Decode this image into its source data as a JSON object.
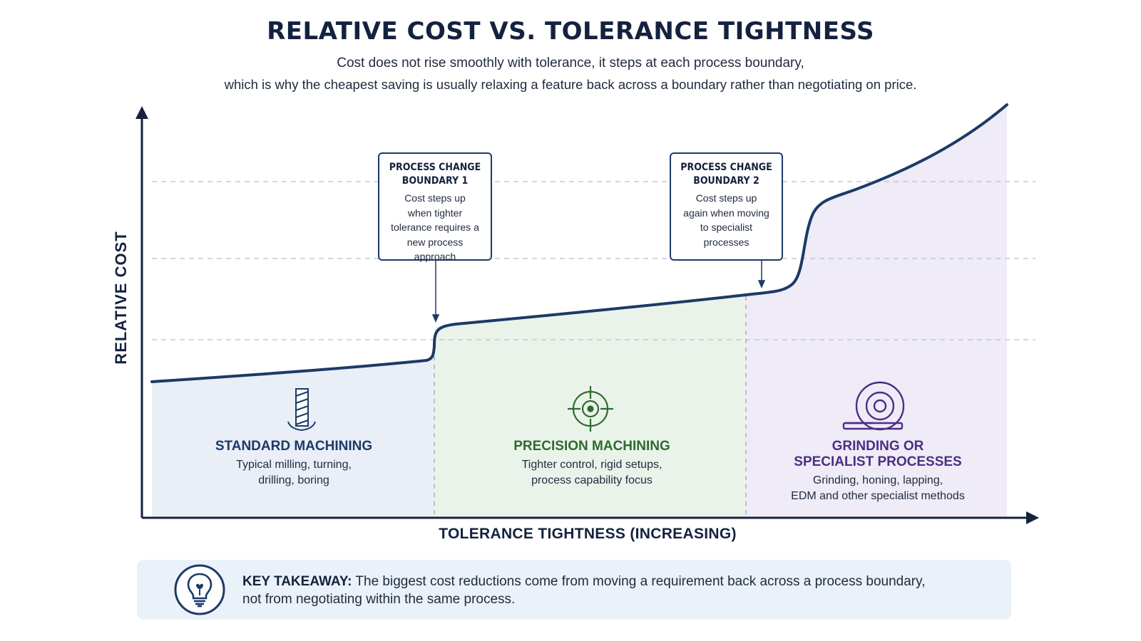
{
  "header": {
    "title": "RELATIVE COST VS. TOLERANCE TIGHTNESS",
    "subtitle_line1": "Cost does not rise smoothly with tolerance, it steps at each process boundary,",
    "subtitle_line2": "which is why the cheapest saving is usually relaxing a feature back across a boundary rather than negotiating on price."
  },
  "axes": {
    "y_label": "RELATIVE COST",
    "x_label": "TOLERANCE TIGHTNESS (INCREASING)"
  },
  "callouts": [
    {
      "title_line1": "PROCESS CHANGE",
      "title_line2": "BOUNDARY 1",
      "body_line1": "Cost steps up",
      "body_line2": "when tighter",
      "body_line3": "tolerance requires a",
      "body_line4": "new process approach"
    },
    {
      "title_line1": "PROCESS CHANGE",
      "title_line2": "BOUNDARY 2",
      "body_line1": "Cost steps up",
      "body_line2": "again when moving",
      "body_line3": "to specialist",
      "body_line4": "processes"
    }
  ],
  "zones": [
    {
      "title_line1": "STANDARD MACHINING",
      "desc_line1": "Typical milling, turning,",
      "desc_line2": "drilling, boring",
      "icon": "drill-bit-icon",
      "color": "#1c3a66",
      "fill": "#e9eef7"
    },
    {
      "title_line1": "PRECISION MACHINING",
      "desc_line1": "Tighter control, rigid setups,",
      "desc_line2": "process capability focus",
      "icon": "crosshair-target-icon",
      "color": "#2e6b2e",
      "fill": "#eaf3ea"
    },
    {
      "title_line1": "GRINDING OR",
      "title_line2": "SPECIALIST PROCESSES",
      "desc_line1": "Grinding, honing, lapping,",
      "desc_line2": "EDM and other specialist methods",
      "icon": "grinding-wheel-icon",
      "color": "#4b2e83",
      "fill": "#efebf7"
    }
  ],
  "takeaway": {
    "label": "KEY TAKEAWAY:",
    "text_line1": "The biggest cost reductions come from moving a requirement back across a process boundary,",
    "text_line2": "not from negotiating within the same process.",
    "icon": "lightbulb-icon"
  },
  "colors": {
    "curve": "#1c3a66",
    "axis": "#14223f"
  }
}
